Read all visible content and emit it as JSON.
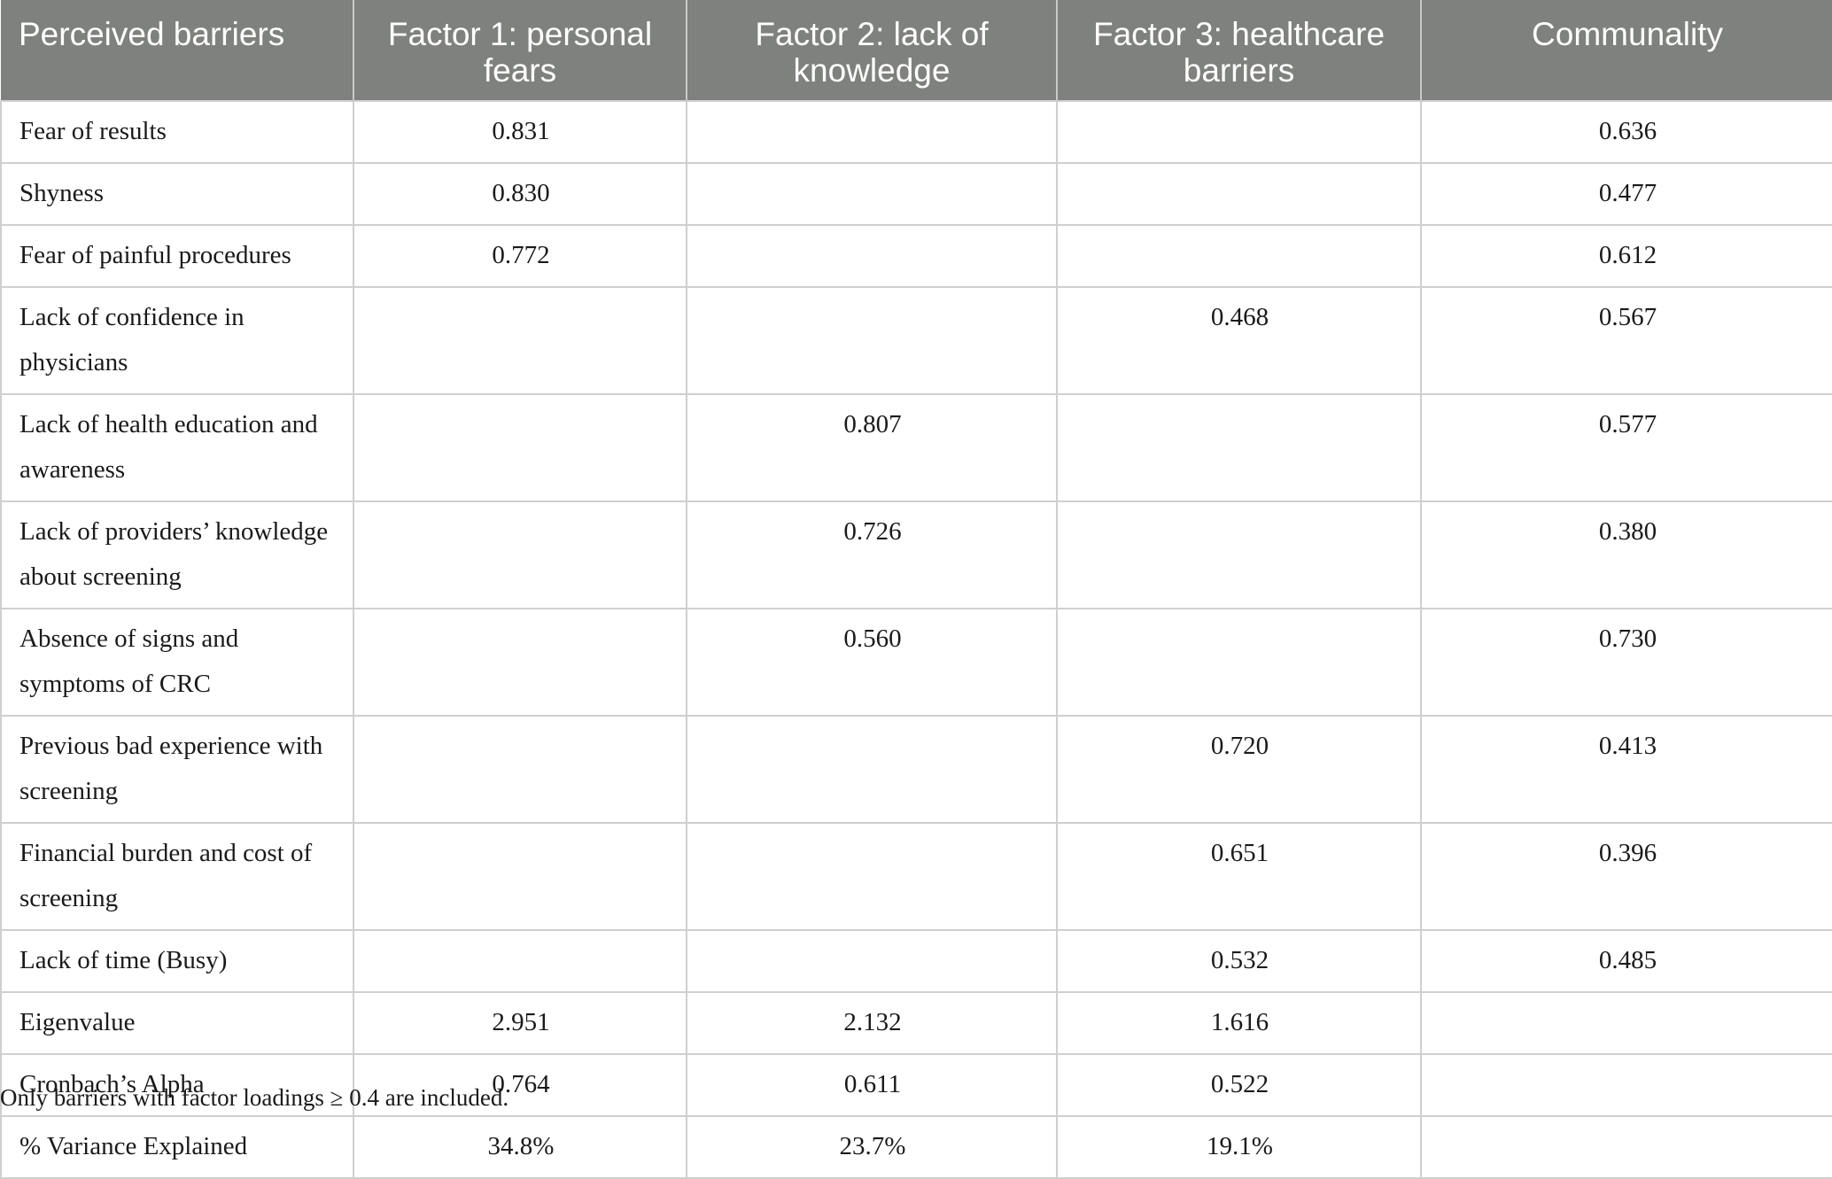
{
  "table": {
    "headers": [
      "Perceived barriers",
      "Factor 1: personal fears",
      "Factor 2: lack of knowledge",
      "Factor 3: healthcare barriers",
      "Communality"
    ],
    "rows": [
      [
        "Fear of results",
        "0.831",
        "",
        "",
        "0.636"
      ],
      [
        "Shyness",
        "0.830",
        "",
        "",
        "0.477"
      ],
      [
        "Fear of painful procedures",
        "0.772",
        "",
        "",
        "0.612"
      ],
      [
        "Lack of confidence in physicians",
        "",
        "",
        "0.468",
        "0.567"
      ],
      [
        "Lack of health education and awareness",
        "",
        "0.807",
        "",
        "0.577"
      ],
      [
        "Lack of providers’ knowledge about screening",
        "",
        "0.726",
        "",
        "0.380"
      ],
      [
        "Absence of signs and symptoms of CRC",
        "",
        "0.560",
        "",
        "0.730"
      ],
      [
        "Previous bad experience with screening",
        "",
        "",
        "0.720",
        "0.413"
      ],
      [
        "Financial burden and cost of screening",
        "",
        "",
        "0.651",
        "0.396"
      ],
      [
        "Lack of time (Busy)",
        "",
        "",
        "0.532",
        "0.485"
      ],
      [
        "Eigenvalue",
        "2.951",
        "2.132",
        "1.616",
        ""
      ],
      [
        "Cronbach’s Alpha",
        "0.764",
        "0.611",
        "0.522",
        ""
      ],
      [
        "% Variance Explained",
        "34.8%",
        "23.7%",
        "19.1%",
        ""
      ]
    ]
  },
  "footnote": "Only barriers with factor loadings ≥ 0.4 are included."
}
